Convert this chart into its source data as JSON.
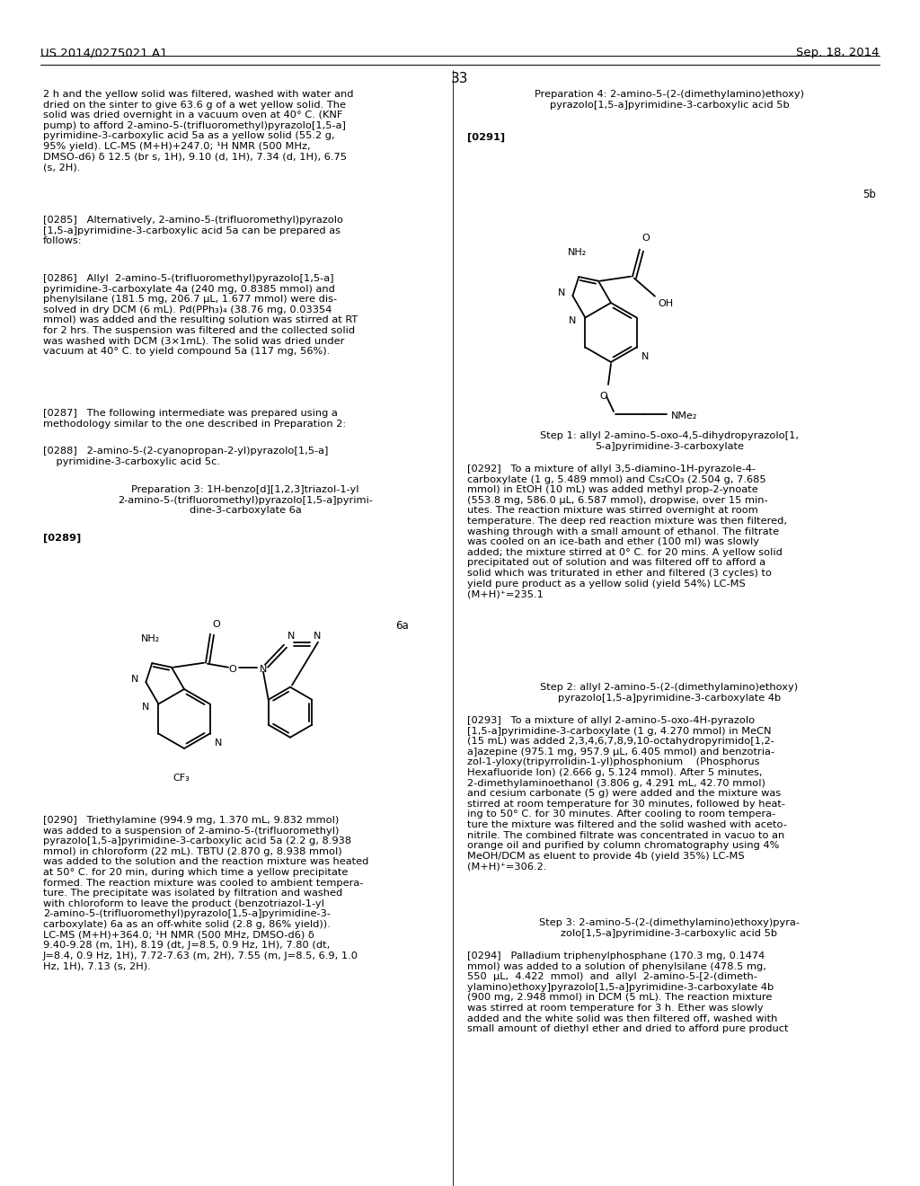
{
  "page_number": "33",
  "header_left": "US 2014/0275021 A1",
  "header_right": "Sep. 18, 2014",
  "background_color": "#ffffff"
}
